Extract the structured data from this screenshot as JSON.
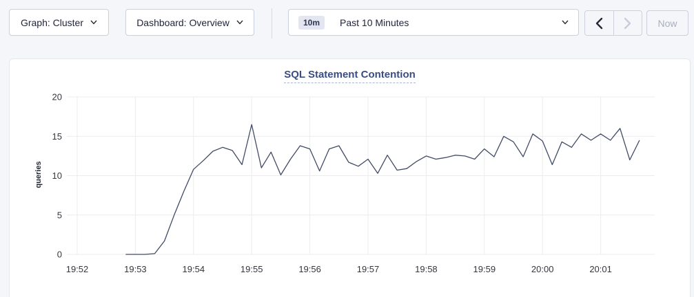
{
  "toolbar": {
    "graph_selector": {
      "label": "Graph: Cluster"
    },
    "dashboard_selector": {
      "label": "Dashboard: Overview"
    },
    "time_selector": {
      "badge": "10m",
      "label": "Past 10 Minutes"
    },
    "now_button": {
      "label": "Now"
    }
  },
  "chart_data": {
    "type": "line",
    "title": "SQL Statement Contention",
    "ylabel": "queries",
    "ylim": [
      0,
      20
    ],
    "yticks": [
      0,
      5,
      10,
      15,
      20
    ],
    "xticks": [
      "19:52",
      "19:53",
      "19:54",
      "19:55",
      "19:56",
      "19:57",
      "19:58",
      "19:59",
      "20:00",
      "20:01"
    ],
    "grid": true,
    "legend": "none",
    "series": [
      {
        "name": "queries",
        "x_origin": "19:52",
        "x_start_offset_s": 50,
        "x_step_s": 10,
        "values": [
          0,
          0,
          0,
          0.1,
          1.7,
          5,
          8,
          10.8,
          11.9,
          13.1,
          13.6,
          13.2,
          11.4,
          16.5,
          11,
          13,
          10.1,
          12.1,
          13.8,
          13.4,
          10.6,
          13.4,
          13.8,
          11.7,
          11.2,
          12.1,
          10.3,
          12.6,
          10.7,
          10.9,
          11.8,
          12.5,
          12.1,
          12.3,
          12.6,
          12.5,
          12.1,
          13.4,
          12.4,
          15,
          14.3,
          12.4,
          15.3,
          14.4,
          11.4,
          14.3,
          13.6,
          15.3,
          14.5,
          15.3,
          14.5,
          16,
          12,
          14.5
        ]
      }
    ]
  },
  "colors": {
    "line": "#414a66",
    "grid": "#ececee",
    "title": "#3a4d82",
    "page_bg": "#f4f6fa",
    "panel_bg": "#ffffff",
    "enabled_icon": "#242a35",
    "disabled_icon": "#c7ccd8",
    "disabled_text": "#a9aeba"
  }
}
